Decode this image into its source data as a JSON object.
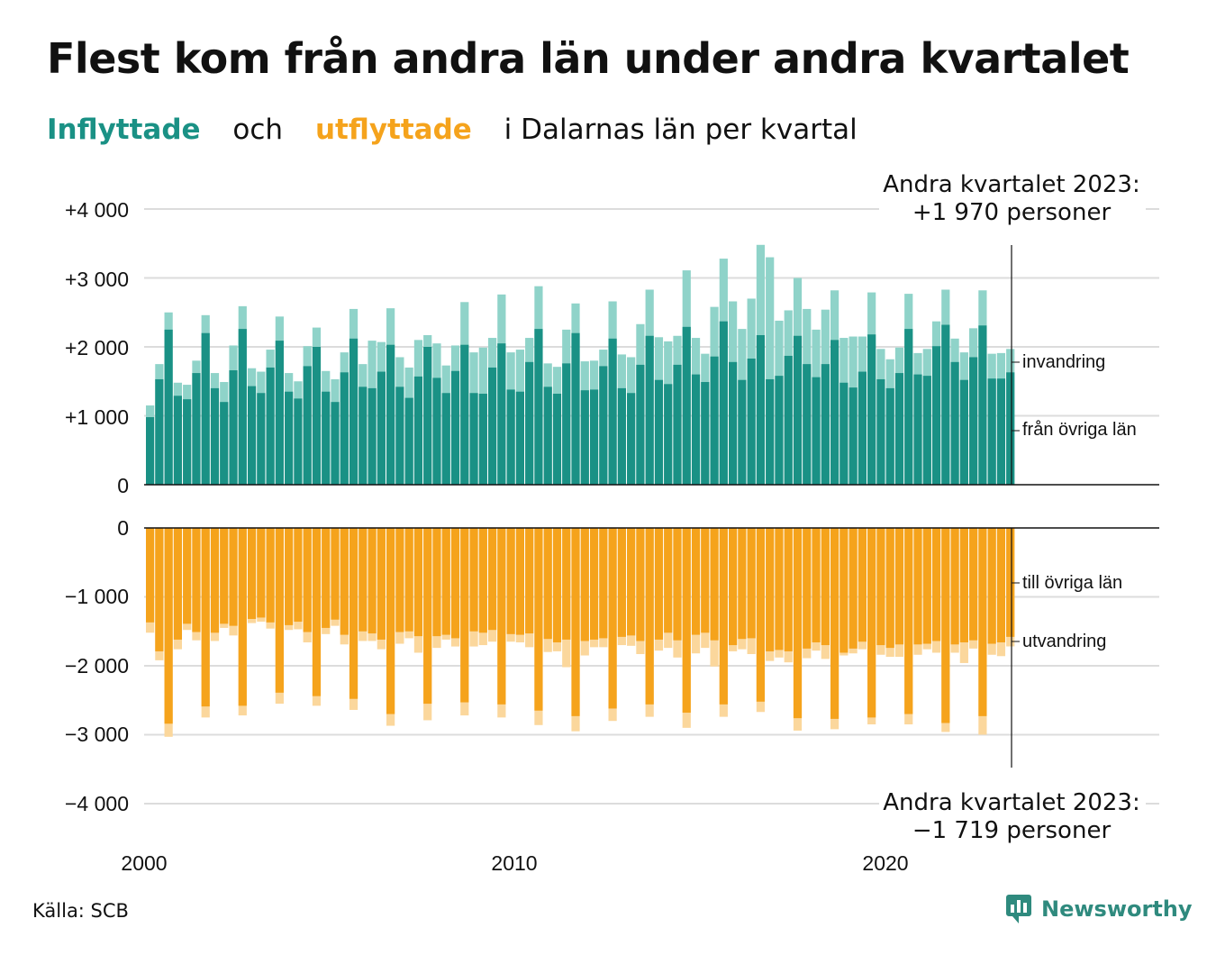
{
  "title": "Flest kom från andra län under andra kvartalet",
  "subtitle": {
    "inflyttade": "Inflyttade",
    "och": "och",
    "utflyttade": "utflyttade",
    "rest": "i Dalarnas län per kvartal"
  },
  "source": "Källa: SCB",
  "logo": {
    "text": "Newsworthy",
    "icon": "newsworthy-logo-icon"
  },
  "colors": {
    "in_dark": "#1a9185",
    "in_light": "#8fd3c9",
    "out_dark": "#f5a31c",
    "out_light": "#fbd79c",
    "grid": "#dcdcdc",
    "axis": "#111111"
  },
  "chart_data": {
    "type": "bar",
    "x_tick_labels": [
      "2000",
      "2010",
      "2020"
    ],
    "y_ticks_top": [
      "+4 000",
      "+3 000",
      "+2 000",
      "+1 000",
      "0"
    ],
    "y_ticks_bottom": [
      "0",
      "−1 000",
      "−2 000",
      "−3 000",
      "−4 000"
    ],
    "ylim_top": [
      0,
      4000
    ],
    "ylim_bottom": [
      -4000,
      0
    ],
    "grid": true,
    "series_labels": {
      "invandring": "invandring",
      "fran_ovriga_lan": "från övriga län",
      "till_ovriga_lan": "till övriga län",
      "utvandring": "utvandring"
    },
    "annotation_top": {
      "line1": "Andra kvartalet 2023:",
      "line2": "+1 970 personer"
    },
    "annotation_bottom": {
      "line1": "Andra kvartalet 2023:",
      "line2": "−1 719 personer"
    },
    "quarters_start": "2000 Q1",
    "inflyttade_total": [
      1150,
      1750,
      2500,
      1480,
      1450,
      1800,
      2460,
      1620,
      1490,
      2020,
      2590,
      1690,
      1640,
      1960,
      2440,
      1620,
      1500,
      2010,
      2280,
      1650,
      1530,
      1920,
      2550,
      1750,
      2090,
      2070,
      2560,
      1850,
      1700,
      2100,
      2170,
      2050,
      1730,
      2020,
      2650,
      1920,
      1990,
      2130,
      2760,
      1920,
      1960,
      2130,
      2880,
      1760,
      1710,
      2250,
      2630,
      1790,
      1800,
      1960,
      2660,
      1890,
      1850,
      2330,
      2830,
      2140,
      2080,
      2160,
      3110,
      2130,
      1900,
      2580,
      3280,
      2660,
      2260,
      2700,
      3480,
      3300,
      2380,
      2530,
      3000,
      2550,
      2250,
      2540,
      2820,
      2130,
      2150,
      2150,
      2790,
      1970,
      1820,
      1990,
      2770,
      1910,
      1970,
      2370,
      2830,
      2120,
      1920,
      2270,
      2820,
      1900,
      1910,
      1970
    ],
    "fran_ovriga_lan": [
      980,
      1530,
      2250,
      1290,
      1240,
      1620,
      2200,
      1400,
      1200,
      1660,
      2260,
      1430,
      1330,
      1700,
      2090,
      1350,
      1250,
      1720,
      2000,
      1350,
      1200,
      1630,
      2120,
      1420,
      1400,
      1640,
      2030,
      1420,
      1260,
      1570,
      2000,
      1550,
      1330,
      1650,
      2030,
      1330,
      1320,
      1700,
      2050,
      1380,
      1350,
      1780,
      2260,
      1420,
      1320,
      1760,
      2200,
      1370,
      1380,
      1720,
      2120,
      1400,
      1330,
      1740,
      2160,
      1520,
      1460,
      1740,
      2290,
      1600,
      1490,
      1860,
      2370,
      1780,
      1520,
      1830,
      2170,
      1530,
      1580,
      1870,
      2160,
      1750,
      1560,
      1750,
      2100,
      1480,
      1410,
      1640,
      2180,
      1530,
      1400,
      1620,
      2260,
      1600,
      1580,
      2010,
      2320,
      1780,
      1520,
      1850,
      2310,
      1540,
      1540,
      1630
    ],
    "till_ovriga_lan": [
      -1370,
      -1790,
      -2840,
      -1620,
      -1390,
      -1510,
      -2590,
      -1520,
      -1390,
      -1420,
      -2580,
      -1320,
      -1300,
      -1370,
      -2390,
      -1410,
      -1360,
      -1510,
      -2440,
      -1450,
      -1330,
      -1550,
      -2480,
      -1500,
      -1530,
      -1620,
      -2700,
      -1510,
      -1500,
      -1570,
      -2550,
      -1570,
      -1550,
      -1600,
      -2530,
      -1500,
      -1520,
      -1480,
      -2560,
      -1540,
      -1550,
      -1530,
      -2650,
      -1610,
      -1660,
      -1620,
      -2730,
      -1640,
      -1620,
      -1600,
      -2620,
      -1580,
      -1560,
      -1640,
      -2560,
      -1620,
      -1520,
      -1630,
      -2680,
      -1550,
      -1520,
      -1630,
      -2560,
      -1700,
      -1610,
      -1600,
      -2520,
      -1790,
      -1770,
      -1790,
      -2760,
      -1750,
      -1660,
      -1700,
      -2770,
      -1810,
      -1750,
      -1650,
      -2750,
      -1700,
      -1740,
      -1690,
      -2700,
      -1690,
      -1680,
      -1640,
      -2830,
      -1690,
      -1660,
      -1630,
      -2730,
      -1680,
      -1660,
      -1580
    ],
    "utvandring_total": [
      -1520,
      -1920,
      -3030,
      -1760,
      -1480,
      -1630,
      -2750,
      -1640,
      -1450,
      -1560,
      -2720,
      -1380,
      -1360,
      -1460,
      -2550,
      -1480,
      -1470,
      -1660,
      -2580,
      -1540,
      -1420,
      -1690,
      -2640,
      -1640,
      -1640,
      -1760,
      -2870,
      -1680,
      -1600,
      -1810,
      -2790,
      -1740,
      -1620,
      -1720,
      -2720,
      -1720,
      -1700,
      -1650,
      -2750,
      -1650,
      -1660,
      -1730,
      -2860,
      -1800,
      -1790,
      -2020,
      -2950,
      -1850,
      -1730,
      -1730,
      -2800,
      -1700,
      -1710,
      -1830,
      -2740,
      -1780,
      -1740,
      -1880,
      -2900,
      -1820,
      -1740,
      -2010,
      -2740,
      -1790,
      -1760,
      -1830,
      -2670,
      -1930,
      -1880,
      -1950,
      -2940,
      -1890,
      -1780,
      -1900,
      -2920,
      -1850,
      -1820,
      -1760,
      -2850,
      -1840,
      -1870,
      -1870,
      -2850,
      -1840,
      -1760,
      -1810,
      -2960,
      -1810,
      -1960,
      -1750,
      -3000,
      -1840,
      -1860,
      -1719
    ]
  }
}
